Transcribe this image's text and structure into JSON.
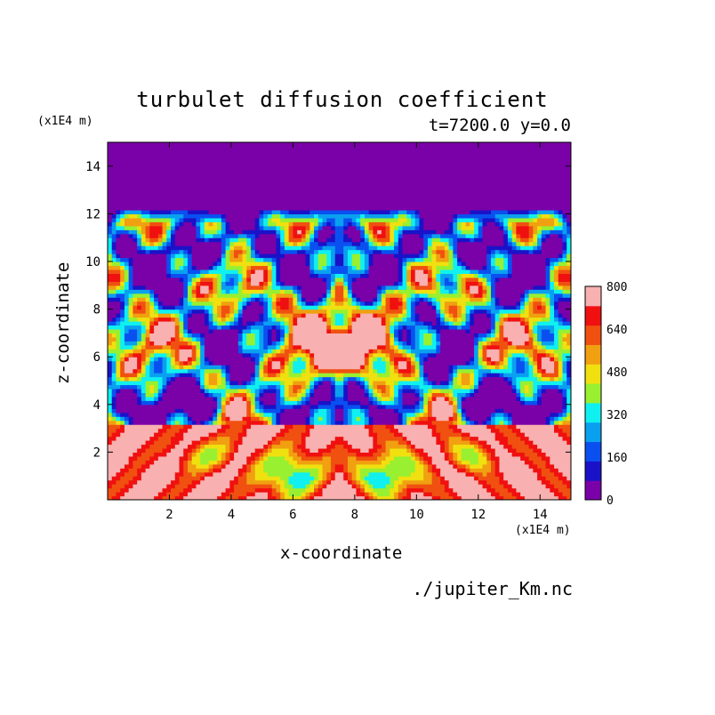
{
  "chart_data": {
    "type": "heatmap",
    "title": "turbulet diffusion coefficient",
    "subtitle": "t=7200.0 y=0.0",
    "xlabel": "x-coordinate",
    "ylabel": "z-coordinate",
    "x_unit": "(x1E4 m)",
    "y_unit": "(x1E4 m)",
    "xlim": [
      0,
      15
    ],
    "ylim": [
      0,
      15
    ],
    "x_ticks": [
      "2",
      "4",
      "6",
      "8",
      "10",
      "12",
      "14"
    ],
    "y_ticks": [
      "2",
      "4",
      "6",
      "8",
      "10",
      "12",
      "14"
    ],
    "colorbar": {
      "range": [
        0,
        800
      ],
      "step": 80,
      "tick_labels": [
        "0",
        "160",
        "320",
        "480",
        "640",
        "800"
      ],
      "colors": [
        "#7a00a8",
        "#1a12c8",
        "#0a50f0",
        "#0aa0f0",
        "#10f0f0",
        "#98f030",
        "#f0e010",
        "#f0a010",
        "#f05010",
        "#f01010",
        "#f8b0b0"
      ]
    },
    "source": "./jupiter_Km.nc"
  }
}
